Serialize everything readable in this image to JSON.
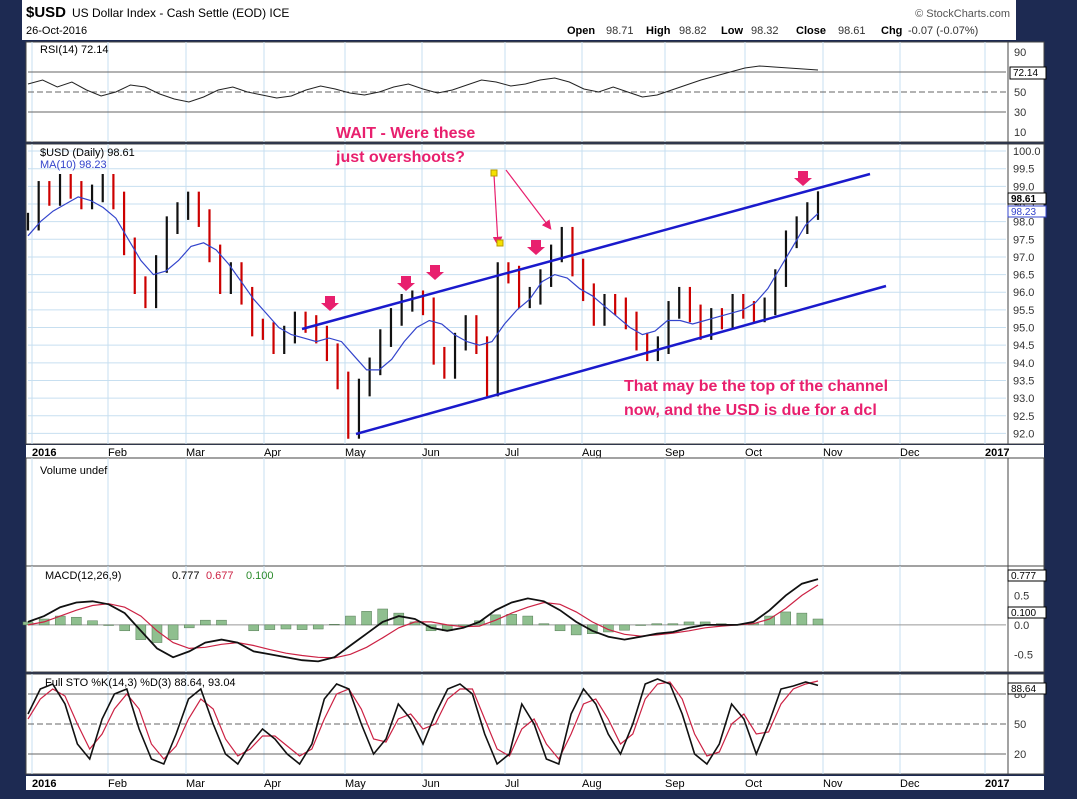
{
  "header": {
    "symbol": "$USD",
    "name": "US Dollar Index - Cash Settle (EOD) ICE",
    "date": "26-Oct-2016",
    "source": "© StockCharts.com",
    "open_label": "Open",
    "open": "98.71",
    "high_label": "High",
    "high": "98.82",
    "low_label": "Low",
    "low": "98.32",
    "close_label": "Close",
    "close": "98.61",
    "chg_label": "Chg",
    "chg": "-0.07 (-0.07%)"
  },
  "months": [
    "2016",
    "Feb",
    "Mar",
    "Apr",
    "May",
    "Jun",
    "Jul",
    "Aug",
    "Sep",
    "Oct",
    "Nov",
    "Dec",
    "2017"
  ],
  "colors": {
    "price": "#cc0000",
    "ma": "#3344cc",
    "channel": "#1a1acc",
    "annotation": "#e8206e",
    "grid": "#c7dff0",
    "bg": "#ffffff",
    "frame": "#1d2a52"
  },
  "chart_data": [
    {
      "type": "line",
      "name": "rsi",
      "title": "RSI(14) 72.14",
      "ylim": [
        0,
        100
      ],
      "ticks": [
        "90",
        "70",
        "50",
        "30",
        "10"
      ],
      "last_value": "72.14",
      "values": [
        58,
        62,
        55,
        60,
        52,
        46,
        50,
        57,
        55,
        48,
        43,
        40,
        45,
        52,
        55,
        50,
        47,
        44,
        46,
        52,
        56,
        53,
        49,
        47,
        50,
        55,
        58,
        53,
        49,
        52,
        57,
        62,
        60,
        56,
        58,
        62,
        64,
        60,
        53,
        50,
        55,
        50,
        45,
        47,
        52,
        57,
        62,
        66,
        70,
        74,
        76,
        75,
        74,
        73,
        72
      ]
    },
    {
      "type": "line",
      "name": "price",
      "title": "$USD (Daily) 98.61",
      "ma_label": "MA(10) 98.23",
      "ylim": [
        91.7,
        100.2
      ],
      "ticks": [
        "100.0",
        "99.5",
        "99.0",
        "98.5",
        "98.0",
        "97.5",
        "97.0",
        "96.5",
        "96.0",
        "95.5",
        "95.0",
        "94.5",
        "94.0",
        "93.5",
        "93.0",
        "92.5",
        "92.0"
      ],
      "last_value": "98.61",
      "ma_last": "98.23",
      "values": [
        98.0,
        98.9,
        98.7,
        99.1,
        98.9,
        98.6,
        98.8,
        99.1,
        98.6,
        97.3,
        96.2,
        95.8,
        96.8,
        97.9,
        98.3,
        98.6,
        98.1,
        97.1,
        96.2,
        96.6,
        95.9,
        95.0,
        94.9,
        94.5,
        94.8,
        95.2,
        95.1,
        94.8,
        94.3,
        93.5,
        92.1,
        93.3,
        93.9,
        94.7,
        95.3,
        95.7,
        95.8,
        95.6,
        94.2,
        93.8,
        94.6,
        95.1,
        94.5,
        93.3,
        96.6,
        96.5,
        95.8,
        95.9,
        96.4,
        97.1,
        97.6,
        96.7,
        96.0,
        95.3,
        95.7,
        95.6,
        95.2,
        94.6,
        94.3,
        94.5,
        95.5,
        95.9,
        95.4,
        94.9,
        95.3,
        95.2,
        95.7,
        95.5,
        95.4,
        95.6,
        96.4,
        97.5,
        97.9,
        98.3,
        98.61
      ],
      "ma_values": [
        97.6,
        98.0,
        98.3,
        98.5,
        98.7,
        98.6,
        98.4,
        98.1,
        97.5,
        96.9,
        96.5,
        96.6,
        96.9,
        97.3,
        97.4,
        97.2,
        96.8,
        96.3,
        95.8,
        95.4,
        95.0,
        94.8,
        94.7,
        94.6,
        94.7,
        94.6,
        94.2,
        93.8,
        93.8,
        94.1,
        94.6,
        95.0,
        95.2,
        95.1,
        94.8,
        94.6,
        94.5,
        94.6,
        95.1,
        95.5,
        95.8,
        96.3,
        96.5,
        96.4,
        96.1,
        95.9,
        95.6,
        95.3,
        95.0,
        94.8,
        94.9,
        95.2,
        95.2,
        95.1,
        95.2,
        95.3,
        95.4,
        95.5,
        95.7,
        96.1,
        96.7,
        97.3,
        97.9,
        98.23
      ]
    },
    {
      "type": "bar",
      "name": "volume",
      "title": "Volume undef",
      "values": []
    },
    {
      "type": "line",
      "name": "macd",
      "title": "MACD(12,26,9)",
      "legend": [
        "0.777",
        "0.677",
        "0.100"
      ],
      "ylim": [
        -0.8,
        1.0
      ],
      "ticks": [
        "0.5",
        "0.0",
        "-0.5"
      ],
      "last_value": "0.777",
      "hist_last": "0.100",
      "macd": [
        0.05,
        0.15,
        0.3,
        0.38,
        0.4,
        0.35,
        0.2,
        -0.1,
        -0.4,
        -0.55,
        -0.45,
        -0.3,
        -0.25,
        -0.3,
        -0.45,
        -0.5,
        -0.55,
        -0.6,
        -0.62,
        -0.55,
        -0.35,
        -0.15,
        0.05,
        0.15,
        0.1,
        -0.05,
        -0.1,
        -0.05,
        0.05,
        0.25,
        0.38,
        0.45,
        0.4,
        0.25,
        0.05,
        -0.1,
        -0.2,
        -0.25,
        -0.2,
        -0.15,
        -0.12,
        -0.05,
        0.0,
        0.0,
        0.0,
        0.05,
        0.25,
        0.5,
        0.7,
        0.777
      ],
      "signal": [
        0.0,
        0.05,
        0.15,
        0.25,
        0.33,
        0.36,
        0.3,
        0.15,
        -0.1,
        -0.3,
        -0.4,
        -0.38,
        -0.33,
        -0.3,
        -0.35,
        -0.42,
        -0.48,
        -0.52,
        -0.55,
        -0.56,
        -0.5,
        -0.38,
        -0.22,
        -0.05,
        0.05,
        0.05,
        0.0,
        -0.03,
        -0.02,
        0.08,
        0.2,
        0.3,
        0.38,
        0.35,
        0.22,
        0.05,
        -0.08,
        -0.16,
        -0.19,
        -0.17,
        -0.14,
        -0.1,
        -0.05,
        -0.02,
        0.0,
        0.02,
        0.1,
        0.28,
        0.5,
        0.677
      ]
    },
    {
      "type": "line",
      "name": "stochastic",
      "title": "Full STO %K(14,3) %D(3) 88.64, 93.04",
      "ylim": [
        0,
        100
      ],
      "ticks": [
        "80",
        "50",
        "20"
      ],
      "last_value": "88.64",
      "k": [
        60,
        85,
        90,
        70,
        30,
        15,
        55,
        80,
        85,
        45,
        15,
        10,
        40,
        75,
        85,
        50,
        20,
        10,
        30,
        45,
        35,
        20,
        10,
        30,
        75,
        90,
        85,
        50,
        20,
        35,
        70,
        55,
        30,
        60,
        85,
        90,
        80,
        40,
        10,
        20,
        70,
        50,
        15,
        10,
        60,
        85,
        70,
        40,
        20,
        50,
        90,
        95,
        90,
        60,
        20,
        10,
        30,
        70,
        55,
        20,
        50,
        85,
        88,
        92,
        88.64
      ],
      "d": [
        55,
        75,
        85,
        78,
        50,
        25,
        40,
        65,
        80,
        65,
        30,
        15,
        28,
        55,
        75,
        65,
        35,
        18,
        25,
        38,
        38,
        28,
        18,
        25,
        55,
        80,
        85,
        65,
        35,
        32,
        55,
        60,
        45,
        50,
        75,
        85,
        85,
        55,
        25,
        18,
        45,
        55,
        30,
        15,
        40,
        70,
        75,
        55,
        30,
        40,
        75,
        90,
        92,
        75,
        40,
        18,
        22,
        50,
        60,
        40,
        42,
        70,
        85,
        90,
        93.04
      ]
    }
  ],
  "annotations": {
    "top": "WAIT - Were these just overshoots?",
    "bottom": "That may be the top of the channel now, and the USD is due for a dcl"
  }
}
